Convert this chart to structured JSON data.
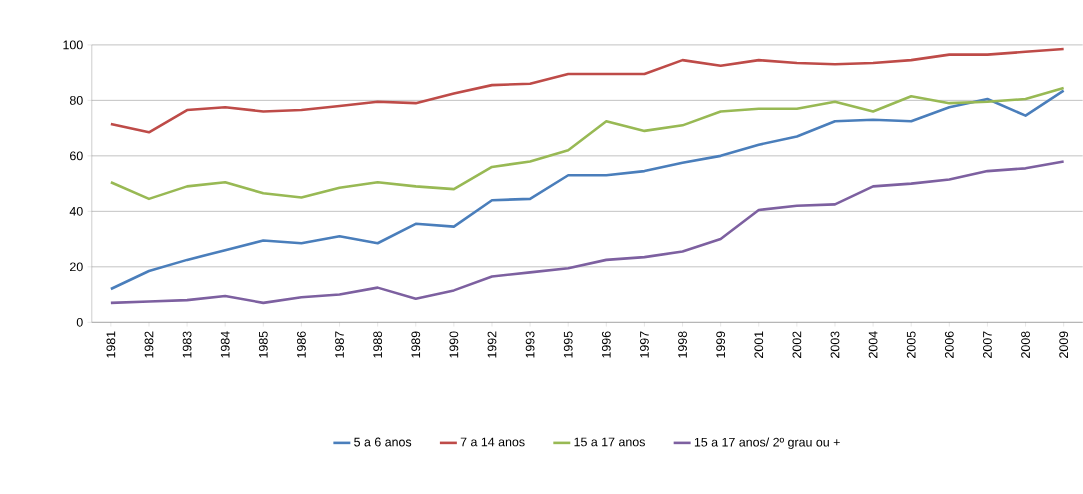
{
  "chart_data": {
    "type": "line",
    "categories": [
      "1981",
      "1982",
      "1983",
      "1984",
      "1985",
      "1986",
      "1987",
      "1988",
      "1989",
      "1990",
      "1992",
      "1993",
      "1995",
      "1996",
      "1997",
      "1998",
      "1999",
      "2001",
      "2002",
      "2003",
      "2004",
      "2005",
      "2006",
      "2007",
      "2008",
      "2009"
    ],
    "series": [
      {
        "name": "5 a 6 anos",
        "color": "#4a7ebb",
        "values": [
          12,
          18.5,
          22.5,
          26,
          29.5,
          28.5,
          31,
          28.5,
          35.5,
          34.5,
          44,
          44.5,
          53,
          53,
          54.5,
          57.5,
          60,
          64,
          67,
          72.5,
          73,
          72.5,
          77.5,
          80.5,
          74.5,
          83.5
        ]
      },
      {
        "name": "7 a 14 anos",
        "color": "#be4b48",
        "values": [
          71.5,
          68.5,
          76.5,
          77.5,
          76,
          76.5,
          78,
          79.5,
          79,
          82.5,
          85.5,
          86,
          89.5,
          89.5,
          89.5,
          94.5,
          92.5,
          94.5,
          93.5,
          93,
          93.5,
          94.5,
          96.5,
          96.5,
          97.5,
          98.5
        ]
      },
      {
        "name": "15 a 17 anos",
        "color": "#98b954",
        "values": [
          50.5,
          44.5,
          49,
          50.5,
          46.5,
          45,
          48.5,
          50.5,
          49,
          48,
          56,
          58,
          62,
          72.5,
          69,
          71,
          76,
          77,
          77,
          79.5,
          76,
          81.5,
          79,
          79.5,
          80.5,
          84.5
        ]
      },
      {
        "name": "15 a 17 anos/ 2º grau ou +",
        "color": "#7d60a0",
        "values": [
          7,
          7.5,
          8,
          9.5,
          7,
          9,
          10,
          12.5,
          8.5,
          11.5,
          16.5,
          18,
          19.5,
          22.5,
          23.5,
          25.5,
          30,
          40.5,
          42,
          42.5,
          49,
          50,
          51.5,
          54.5,
          55.5,
          58
        ]
      }
    ],
    "ylim": [
      0,
      100
    ],
    "yticks": [
      0,
      20,
      40,
      60,
      80,
      100
    ],
    "grid": "y",
    "legend": "bottom"
  }
}
